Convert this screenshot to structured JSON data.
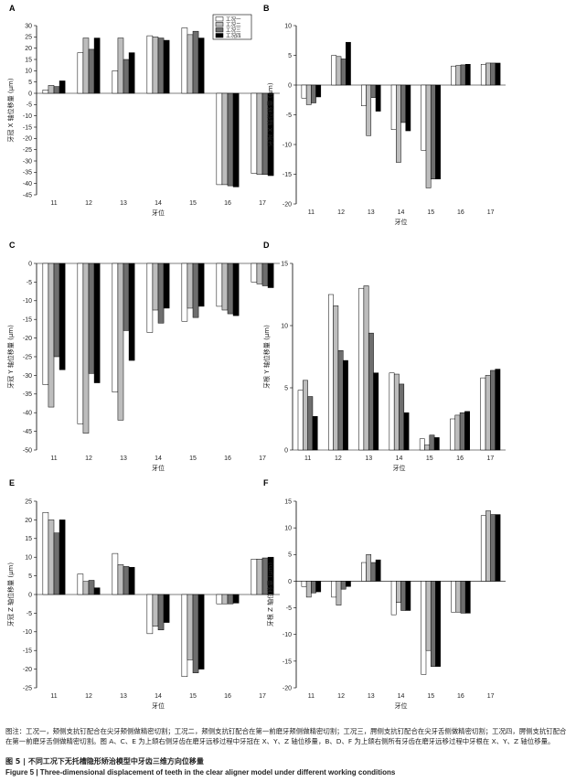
{
  "legend": [
    "工况一",
    "工况二",
    "工况三",
    "工况四"
  ],
  "series_colors": [
    "#ffffff",
    "#bdbdbd",
    "#6e6e6e",
    "#000000"
  ],
  "chart_data": [
    {
      "panel": "A",
      "type": "bar",
      "categories": [
        "11",
        "12",
        "13",
        "14",
        "15",
        "16",
        "17"
      ],
      "ylabel": "牙冠 X 轴位移量 (μm)",
      "xlabel": "牙位",
      "ylim": [
        -45,
        30
      ],
      "yticks": [
        30,
        25,
        20,
        15,
        10,
        5,
        0,
        -5,
        -10,
        -15,
        -20,
        -25,
        -30,
        -35,
        -40,
        -45
      ],
      "legend": "top-right",
      "grid": false,
      "series": [
        {
          "name": "工况一",
          "values": [
            1.5,
            18,
            10,
            25.5,
            29,
            -40.5,
            -35.5
          ]
        },
        {
          "name": "工况二",
          "values": [
            3.5,
            24.5,
            24.5,
            25,
            26,
            -40.5,
            -36
          ]
        },
        {
          "name": "工况三",
          "values": [
            3,
            19.5,
            15,
            24.5,
            27.5,
            -41,
            -36
          ]
        },
        {
          "name": "工况四",
          "values": [
            5.5,
            24.5,
            18,
            23.5,
            24.5,
            -41.5,
            -36.5
          ]
        }
      ]
    },
    {
      "panel": "B",
      "type": "bar",
      "categories": [
        "11",
        "12",
        "13",
        "14",
        "15",
        "16",
        "17"
      ],
      "ylabel": "牙根 X 轴位移量 (μm)",
      "xlabel": "牙位",
      "ylim": [
        -20,
        10
      ],
      "yticks": [
        10,
        5,
        0,
        -5,
        -10,
        -15,
        -20
      ],
      "grid": false,
      "series": [
        {
          "name": "工况一",
          "values": [
            -2.2,
            5,
            -3.5,
            -7.5,
            -11,
            3.2,
            3.5
          ]
        },
        {
          "name": "工况二",
          "values": [
            -3.3,
            4.8,
            -8.5,
            -13,
            -17.3,
            3.3,
            3.7
          ]
        },
        {
          "name": "工况三",
          "values": [
            -3,
            4.4,
            -2.1,
            -6.3,
            -15.8,
            3.4,
            3.7
          ]
        },
        {
          "name": "工况四",
          "values": [
            -2,
            7.2,
            -4.4,
            -7.7,
            -15.8,
            3.5,
            3.7
          ]
        }
      ]
    },
    {
      "panel": "C",
      "type": "bar",
      "categories": [
        "11",
        "12",
        "13",
        "14",
        "15",
        "16",
        "17"
      ],
      "ylabel": "牙冠 Y 轴位移量 (μm)",
      "xlabel": "牙位",
      "ylim": [
        -50,
        0
      ],
      "yticks": [
        0,
        -5,
        -10,
        -15,
        -20,
        -25,
        -30,
        -35,
        -40,
        -45,
        -50
      ],
      "grid": false,
      "series": [
        {
          "name": "工况一",
          "values": [
            -32.5,
            -43,
            -34.5,
            -18.5,
            -15.5,
            -11.5,
            -5
          ]
        },
        {
          "name": "工况二",
          "values": [
            -38.5,
            -45.5,
            -42,
            -12.5,
            -12,
            -12.5,
            -5.5
          ]
        },
        {
          "name": "工况三",
          "values": [
            -25,
            -29.5,
            -18,
            -16,
            -14.5,
            -13.5,
            -6
          ]
        },
        {
          "name": "工况四",
          "values": [
            -28.5,
            -32,
            -26,
            -12,
            -11.5,
            -14,
            -6.5
          ]
        }
      ]
    },
    {
      "panel": "D",
      "type": "bar",
      "categories": [
        "11",
        "12",
        "13",
        "14",
        "15",
        "16",
        "17"
      ],
      "ylabel": "牙根 Y 轴位移量 (μm)",
      "xlabel": "牙位",
      "ylim": [
        0,
        15
      ],
      "yticks": [
        15,
        10,
        5,
        0
      ],
      "grid": false,
      "series": [
        {
          "name": "工况一",
          "values": [
            4.8,
            12.5,
            13,
            6.2,
            0.9,
            2.5,
            5.8
          ]
        },
        {
          "name": "工况二",
          "values": [
            5.6,
            11.6,
            13.2,
            6.1,
            0.4,
            2.8,
            6
          ]
        },
        {
          "name": "工况三",
          "values": [
            4.3,
            8,
            9.4,
            5.3,
            1.2,
            3,
            6.4
          ]
        },
        {
          "name": "工况四",
          "values": [
            2.7,
            7.2,
            6.2,
            3,
            1,
            3.1,
            6.5
          ]
        }
      ]
    },
    {
      "panel": "E",
      "type": "bar",
      "categories": [
        "11",
        "12",
        "13",
        "14",
        "15",
        "16",
        "17"
      ],
      "ylabel": "牙冠 Z 轴位移量 (μm)",
      "xlabel": "牙位",
      "ylim": [
        -25,
        25
      ],
      "yticks": [
        25,
        20,
        15,
        10,
        5,
        0,
        -5,
        -10,
        -15,
        -20,
        -25
      ],
      "grid": false,
      "series": [
        {
          "name": "工况一",
          "values": [
            22,
            5.5,
            11,
            -10.5,
            -22,
            -2.5,
            9.5
          ]
        },
        {
          "name": "工况二",
          "values": [
            20,
            3.5,
            8,
            -8.5,
            -17.5,
            -2.5,
            9.5
          ]
        },
        {
          "name": "工况三",
          "values": [
            16.5,
            3.8,
            7.5,
            -9.5,
            -21,
            -2.5,
            9.8
          ]
        },
        {
          "name": "工况四",
          "values": [
            20,
            1.8,
            7.3,
            -7.5,
            -20,
            -2.3,
            10
          ]
        }
      ]
    },
    {
      "panel": "F",
      "type": "bar",
      "categories": [
        "11",
        "12",
        "13",
        "14",
        "15",
        "16",
        "17"
      ],
      "ylabel": "牙根 Z 轴位移量 (μm)",
      "xlabel": "牙位",
      "ylim": [
        -20,
        15
      ],
      "yticks": [
        15,
        10,
        5,
        0,
        -5,
        -10,
        -15,
        -20
      ],
      "grid": false,
      "series": [
        {
          "name": "工况一",
          "values": [
            -1,
            -3,
            3.5,
            -6.3,
            -17.5,
            -5.8,
            12.3
          ]
        },
        {
          "name": "工况二",
          "values": [
            -3,
            -4.5,
            5,
            -4,
            -13,
            -5.8,
            13.2
          ]
        },
        {
          "name": "工况三",
          "values": [
            -2.2,
            -1.5,
            3.5,
            -5.5,
            -16,
            -6,
            12.5
          ]
        },
        {
          "name": "工况四",
          "values": [
            -2,
            -1,
            4,
            -5.5,
            -16,
            -6,
            12.5
          ]
        }
      ]
    }
  ],
  "note": "图注：工况一，颊侧支抗钉配合在尖牙颊侧做精密切割；工况二，颊侧支抗钉配合在第一前磨牙颊侧做精密切割；工况三，腭侧支抗钉配合在尖牙舌侧做精密切割；工况四，腭侧支抗钉配合在第一前磨牙舌侧做精密切割。图 A、C、E 为上颌右侧牙齿在磨牙远移过程中牙冠在 X、Y、Z 轴位移量，B、D、F 为上颌右侧所有牙齿在磨牙远移过程中牙根在 X、Y、Z 轴位移量。",
  "caption_cn": "图 5 | 不同工况下无托槽隐形矫治模型中牙齿三维方向位移量",
  "caption_en": "Figure 5 | Three-dimensional displacement of teeth in the clear aligner model under different working conditions"
}
